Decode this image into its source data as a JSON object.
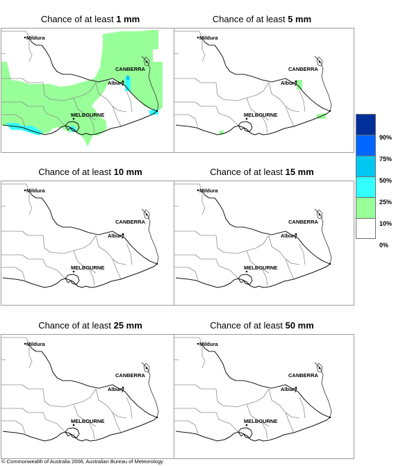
{
  "panels": [
    {
      "prefix": "Chance of at least ",
      "amount": "1 mm"
    },
    {
      "prefix": "Chance of at least ",
      "amount": "5 mm"
    },
    {
      "prefix": "Chance of at least ",
      "amount": "10 mm"
    },
    {
      "prefix": "Chance of at least ",
      "amount": "15 mm"
    },
    {
      "prefix": "Chance of at least ",
      "amount": "25 mm"
    },
    {
      "prefix": "Chance of at least ",
      "amount": "50 mm"
    }
  ],
  "cities": {
    "mildura": "Mildura",
    "canberra": "CANBERRA",
    "albury": "Albury",
    "melbourne": "MELBOURNE"
  },
  "legend": {
    "labels": [
      "90%",
      "75%",
      "50%",
      "25%",
      "10%",
      "0%"
    ],
    "colors": [
      "#002f9a",
      "#0066ff",
      "#00c8f0",
      "#33ffff",
      "#99ff99",
      "#ffffff"
    ]
  },
  "copyright": "© Commonwealth of Australia 2006, Australian Bureau of Meteorology"
}
